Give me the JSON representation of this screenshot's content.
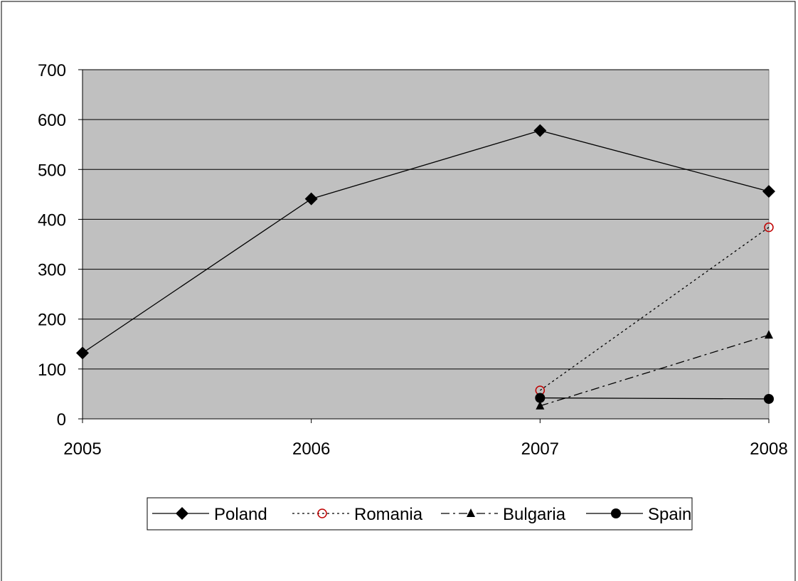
{
  "chart_data": {
    "type": "line",
    "title": "",
    "xlabel": "",
    "ylabel": "",
    "x": [
      "2005",
      "2006",
      "2007",
      "2008"
    ],
    "ylim": [
      0,
      700
    ],
    "yticks": [
      0,
      100,
      200,
      300,
      400,
      500,
      600,
      700
    ],
    "grid": true,
    "plot_background": "#C0C0C0",
    "legend_position": "bottom",
    "series": [
      {
        "name": "Poland",
        "values": [
          132,
          441,
          578,
          456
        ],
        "color": "#000000",
        "dash": "solid",
        "marker": "diamond"
      },
      {
        "name": "Romania",
        "values": [
          null,
          null,
          57,
          384
        ],
        "color": "#000000",
        "dash": "dotted",
        "marker": "circle-open",
        "marker_color": "#C00000"
      },
      {
        "name": "Bulgaria",
        "values": [
          null,
          null,
          26,
          168
        ],
        "color": "#000000",
        "dash": "dashdot",
        "marker": "triangle"
      },
      {
        "name": "Spain",
        "values": [
          null,
          null,
          42,
          40
        ],
        "color": "#000000",
        "dash": "solid",
        "marker": "circle"
      }
    ]
  }
}
